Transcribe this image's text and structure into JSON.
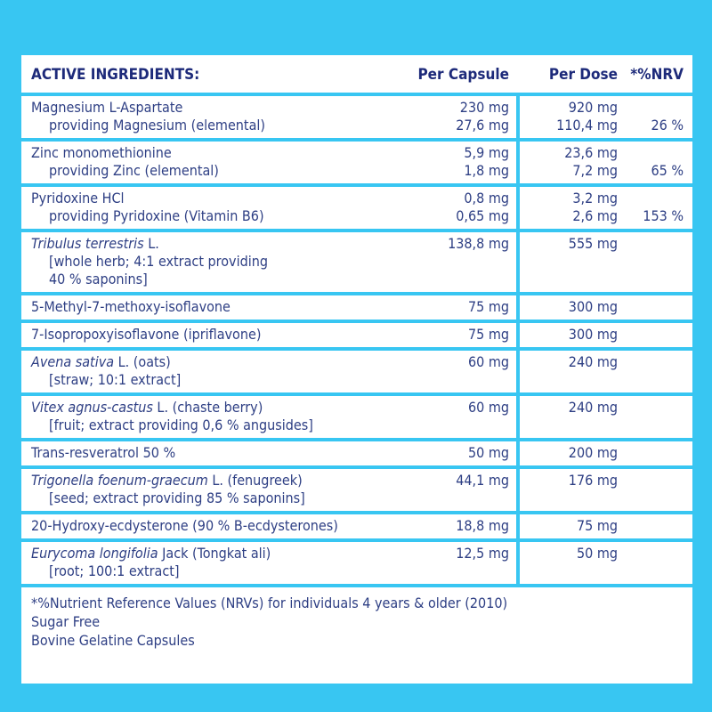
{
  "header": {
    "title": "ACTIVE INGREDIENTS:",
    "per_capsule": "Per Capsule",
    "per_dose": "Per Dose",
    "nrv": "*%NRV"
  },
  "rows": [
    {
      "lines": [
        {
          "name": "Magnesium L-Aspartate",
          "per_capsule": "230 mg",
          "per_dose": "920 mg"
        },
        {
          "name": "providing Magnesium (elemental)",
          "per_capsule": "27,6 mg",
          "per_dose": "110,4 mg",
          "nrv": "26 %"
        }
      ]
    },
    {
      "lines": [
        {
          "name": "Zinc monomethionine",
          "per_capsule": "5,9 mg",
          "per_dose": "23,6 mg"
        },
        {
          "name": "providing Zinc (elemental)",
          "per_capsule": "1,8 mg",
          "per_dose": "7,2 mg",
          "nrv": "65 %"
        }
      ]
    },
    {
      "lines": [
        {
          "name": "Pyridoxine HCl",
          "per_capsule": "0,8 mg",
          "per_dose": "3,2 mg"
        },
        {
          "name": "providing Pyridoxine (Vitamin B6)",
          "per_capsule": "0,65 mg",
          "per_dose": "2,6 mg",
          "nrv": "153 %"
        }
      ]
    },
    {
      "lines": [
        {
          "italic": "Tribulus terrestris",
          "name": "L.",
          "per_capsule": "138,8 mg",
          "per_dose": "555 mg"
        },
        {
          "name": "[whole herb; 4:1 extract providing"
        },
        {
          "name": "40 % saponins]"
        }
      ]
    },
    {
      "lines": [
        {
          "name": "5-Methyl-7-methoxy-isoflavone",
          "per_capsule": "75 mg",
          "per_dose": "300 mg"
        }
      ]
    },
    {
      "lines": [
        {
          "name": "7-Isopropoxyisoflavone (ipriflavone)",
          "per_capsule": "75 mg",
          "per_dose": "300 mg"
        }
      ]
    },
    {
      "lines": [
        {
          "italic": "Avena sativa",
          "name": "L. (oats)",
          "per_capsule": "60 mg",
          "per_dose": "240 mg"
        },
        {
          "name": "[straw; 10:1 extract]"
        }
      ]
    },
    {
      "lines": [
        {
          "italic": "Vitex agnus-castus",
          "name": "L. (chaste berry)",
          "per_capsule": "60 mg",
          "per_dose": "240 mg"
        },
        {
          "name": "[fruit; extract providing 0,6 % angusides]"
        }
      ]
    },
    {
      "lines": [
        {
          "name": "Trans-resveratrol 50 %",
          "per_capsule": "50 mg",
          "per_dose": "200 mg"
        }
      ]
    },
    {
      "lines": [
        {
          "italic": "Trigonella foenum-graecum",
          "name": "L. (fenugreek)",
          "per_capsule": "44,1 mg",
          "per_dose": "176 mg"
        },
        {
          "name": "[seed; extract providing 85 % saponins]"
        }
      ]
    },
    {
      "lines": [
        {
          "name": "20-Hydroxy-ecdysterone (90 % B-ecdysterones)",
          "per_capsule": "18,8 mg",
          "per_dose": "75 mg"
        }
      ]
    },
    {
      "lines": [
        {
          "italic": "Eurycoma longifolia",
          "name": "Jack (Tongkat ali)",
          "per_capsule": "12,5 mg",
          "per_dose": "50 mg"
        },
        {
          "name": "[root; 100:1 extract]"
        }
      ]
    }
  ],
  "footer": [
    "*%Nutrient Reference Values (NRVs) for individuals 4 years & older (2010)",
    "Sugar Free",
    "Bovine Gelatine Capsules"
  ]
}
